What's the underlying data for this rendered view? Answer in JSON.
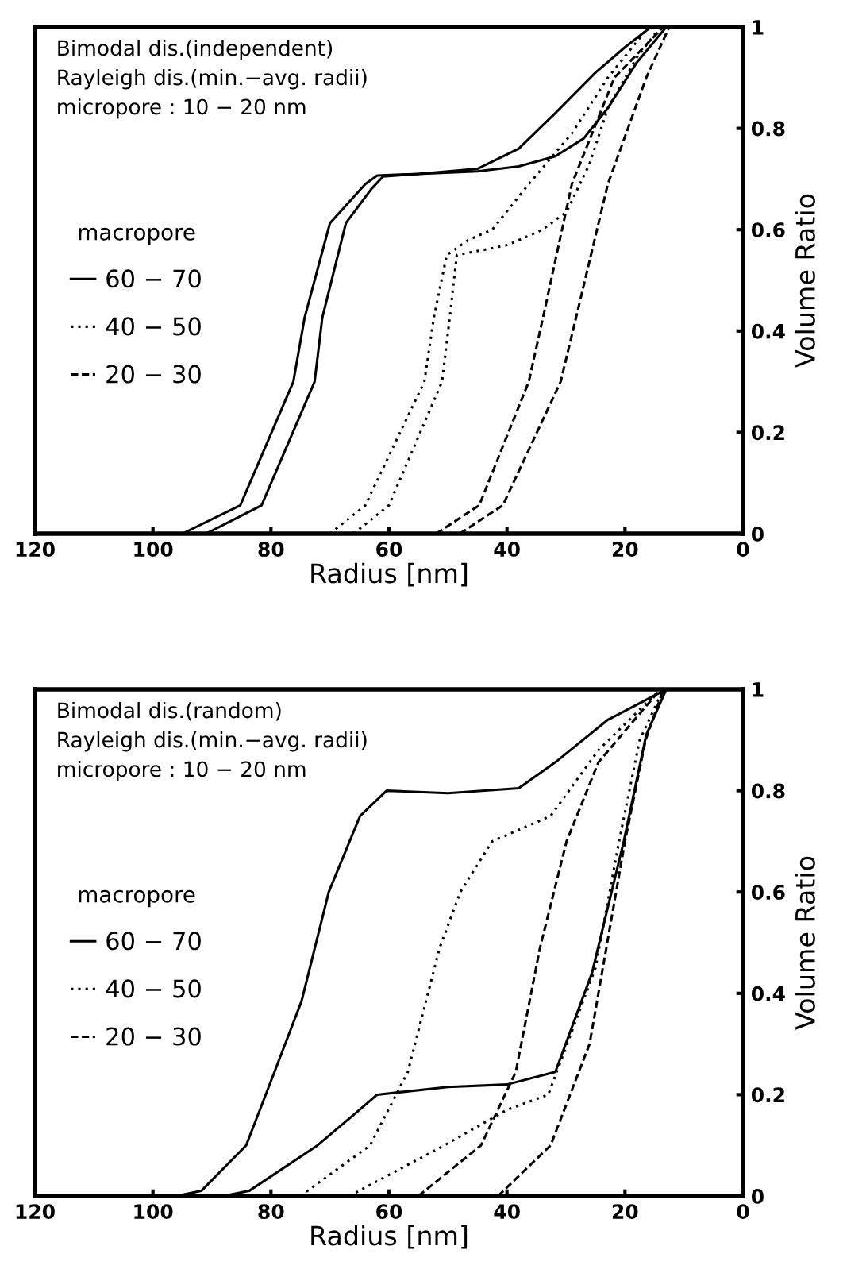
{
  "chart_data": [
    {
      "type": "line",
      "xlabel": "Radius [nm]",
      "ylabel": "Volume Ratio",
      "legend_title": "macropore",
      "legend": "left",
      "grid": false,
      "marker": "none",
      "annotations": [
        "Bimodal dis.(independent)",
        "Rayleigh dis.(min.−avg. radii)",
        "micropore : 10 − 20 nm"
      ],
      "xlim": [
        120,
        0
      ],
      "xticks": [
        120,
        100,
        80,
        60,
        40,
        20,
        0
      ],
      "ylim": [
        0,
        1
      ],
      "yticks": [
        0,
        0.2,
        0.4,
        0.6,
        0.8,
        1
      ],
      "series": [
        {
          "name": "60 − 70",
          "color": "#000000",
          "line_style": "solid",
          "x": [
            95,
            85.2,
            76.2,
            74.3,
            70,
            64,
            62,
            55,
            45,
            38,
            31.8,
            25,
            20,
            15.6
          ],
          "values": [
            0,
            0.056,
            0.3,
            0.426,
            0.613,
            0.69,
            0.707,
            0.71,
            0.72,
            0.76,
            0.83,
            0.91,
            0.96,
            1
          ]
        },
        {
          "color": "#000000",
          "line_style": "solid",
          "x": [
            91,
            81.6,
            72.6,
            71.3,
            67.3,
            63,
            61,
            55,
            45,
            38,
            31.8,
            27,
            22.9,
            18,
            13
          ],
          "values": [
            0,
            0.056,
            0.3,
            0.426,
            0.613,
            0.68,
            0.705,
            0.71,
            0.715,
            0.725,
            0.745,
            0.78,
            0.84,
            0.93,
            1
          ]
        },
        {
          "name": "40 − 50",
          "color": "#000000",
          "line_style": "dotted",
          "x": [
            70,
            64,
            54,
            52.4,
            50.2,
            46.5,
            42.5,
            36.3,
            29,
            22.9,
            16
          ],
          "values": [
            0,
            0.056,
            0.3,
            0.426,
            0.55,
            0.58,
            0.6,
            0.69,
            0.79,
            0.9,
            1
          ]
        },
        {
          "color": "#000000",
          "line_style": "dotted",
          "x": [
            66,
            60,
            51,
            49.7,
            48.5,
            44,
            39.8,
            34,
            29.9,
            26,
            22.9,
            18,
            14
          ],
          "values": [
            0,
            0.056,
            0.3,
            0.426,
            0.55,
            0.56,
            0.57,
            0.6,
            0.635,
            0.73,
            0.84,
            0.94,
            1
          ]
        },
        {
          "name": "20 − 30",
          "color": "#000000",
          "line_style": "dashed",
          "x": [
            52,
            44.7,
            36.3,
            33.9,
            29,
            21.8,
            13.5
          ],
          "values": [
            0,
            0.056,
            0.3,
            0.426,
            0.69,
            0.9,
            1
          ]
        },
        {
          "color": "#000000",
          "line_style": "dashed",
          "x": [
            48,
            40.7,
            30.9,
            28.3,
            22.9,
            16.4,
            12.5
          ],
          "values": [
            0,
            0.056,
            0.3,
            0.426,
            0.69,
            0.9,
            1
          ]
        }
      ]
    },
    {
      "type": "line",
      "xlabel": "Radius [nm]",
      "ylabel": "Volume Ratio",
      "legend_title": "macropore",
      "legend": "left",
      "grid": false,
      "marker": "none",
      "annotations": [
        "Bimodal dis.(random)",
        "Rayleigh dis.(min.−avg. radii)",
        "micropore : 10 − 20 nm"
      ],
      "xlim": [
        120,
        0
      ],
      "xticks": [
        120,
        100,
        80,
        60,
        40,
        20,
        0
      ],
      "ylim": [
        0,
        1
      ],
      "yticks": [
        0,
        0.2,
        0.4,
        0.6,
        0.8,
        1
      ],
      "series": [
        {
          "name": "60 − 70",
          "color": "#000000",
          "line_style": "solid",
          "x": [
            96,
            91.8,
            84.2,
            79.4,
            74.8,
            70.2,
            64.9,
            60.4,
            50,
            38,
            31.8,
            22.9,
            13
          ],
          "values": [
            0,
            0.01,
            0.1,
            0.245,
            0.385,
            0.6,
            0.75,
            0.8,
            0.795,
            0.805,
            0.856,
            0.94,
            1
          ]
        },
        {
          "color": "#000000",
          "line_style": "solid",
          "x": [
            88,
            83.7,
            72.1,
            66,
            62,
            50,
            40,
            31.8,
            25.6,
            20.2,
            16.4,
            13
          ],
          "values": [
            0,
            0.01,
            0.1,
            0.16,
            0.2,
            0.215,
            0.22,
            0.245,
            0.44,
            0.7,
            0.91,
            1
          ]
        },
        {
          "name": "40 − 50",
          "color": "#000000",
          "line_style": "dotted",
          "x": [
            75,
            63.2,
            56.8,
            51.4,
            47.9,
            42.5,
            32.6,
            24.5,
            14
          ],
          "values": [
            0,
            0.1,
            0.245,
            0.49,
            0.6,
            0.7,
            0.75,
            0.88,
            1
          ]
        },
        {
          "color": "#000000",
          "line_style": "dotted",
          "x": [
            66.7,
            50.6,
            40,
            33,
            25,
            21,
            17.5,
            13.5
          ],
          "values": [
            0,
            0.1,
            0.17,
            0.2,
            0.45,
            0.7,
            0.9,
            1
          ]
        },
        {
          "name": "20 − 30",
          "color": "#000000",
          "line_style": "dashed",
          "x": [
            55,
            44.4,
            38.5,
            34.4,
            29.9,
            24.5,
            14
          ],
          "values": [
            0,
            0.1,
            0.245,
            0.49,
            0.7,
            0.856,
            1
          ]
        },
        {
          "color": "#000000",
          "line_style": "dashed",
          "x": [
            41.5,
            32.6,
            26,
            23,
            20,
            16.5,
            13.5
          ],
          "values": [
            0,
            0.1,
            0.3,
            0.5,
            0.7,
            0.9,
            1
          ]
        }
      ]
    }
  ]
}
